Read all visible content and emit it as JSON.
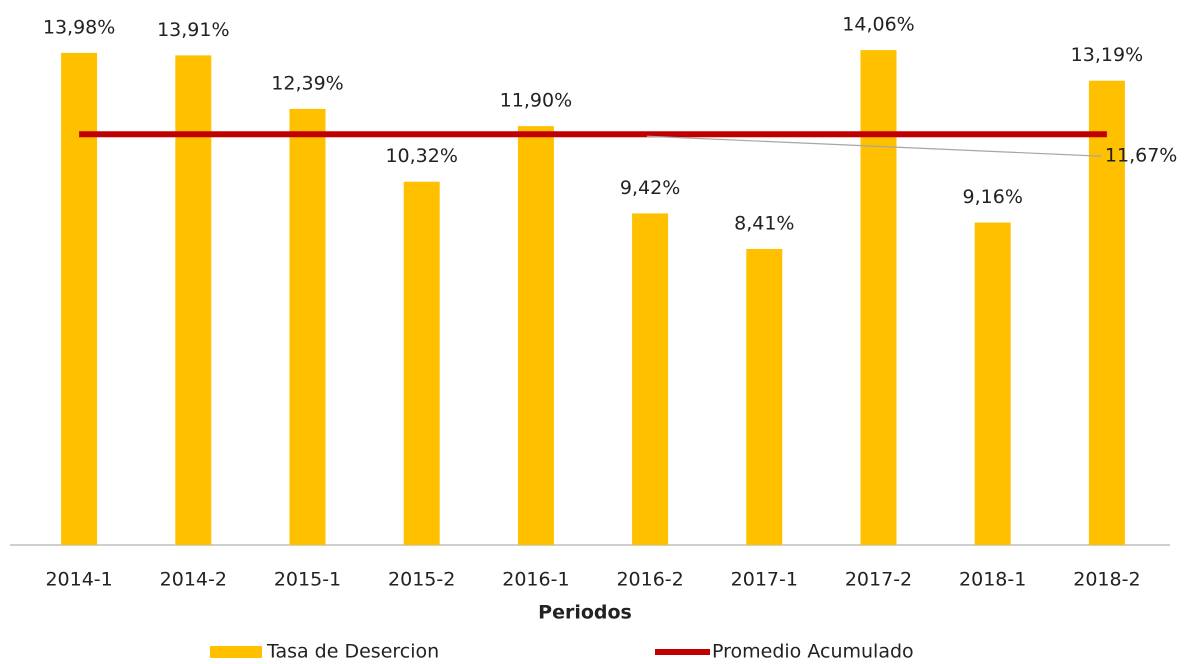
{
  "chart_data": {
    "type": "bar",
    "x_label": "Periodos",
    "categories": [
      "2014-1",
      "2014-2",
      "2015-1",
      "2015-2",
      "2016-1",
      "2016-2",
      "2017-1",
      "2017-2",
      "2018-1",
      "2018-2"
    ],
    "series": [
      {
        "name": "Tasa de Desercion",
        "type": "bar",
        "color": "#ffc000",
        "values": [
          13.98,
          13.91,
          12.39,
          10.32,
          11.9,
          9.42,
          8.41,
          14.06,
          9.16,
          13.19
        ],
        "value_labels": [
          "13,98%",
          "13,91%",
          "12,39%",
          "10,32%",
          "11,90%",
          "9,42%",
          "8,41%",
          "14,06%",
          "9,16%",
          "13,19%"
        ]
      },
      {
        "name": "Promedio Acumulado",
        "type": "line",
        "color": "#c00000",
        "values": [
          11.67,
          11.67,
          11.67,
          11.67,
          11.67,
          11.67,
          11.67,
          11.67,
          11.67,
          11.67
        ],
        "value_labels": [
          null,
          null,
          null,
          null,
          null,
          null,
          null,
          null,
          null,
          "11,67%"
        ]
      }
    ],
    "ylim": [
      0,
      15
    ],
    "legend": "bottom"
  }
}
